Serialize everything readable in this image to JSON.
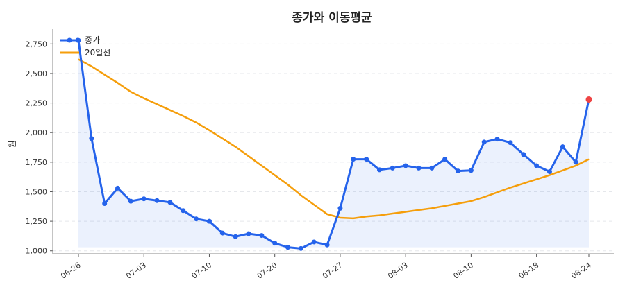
{
  "chart_data": {
    "type": "line",
    "title": "종가와 이동평균",
    "xlabel": "",
    "ylabel": "원",
    "ylim": [
      975,
      2875
    ],
    "y_ticks": [
      1000,
      1250,
      1500,
      1750,
      2000,
      2250,
      2500,
      2750
    ],
    "y_tick_labels": [
      "1,000",
      "1,250",
      "1,500",
      "1,750",
      "2,000",
      "2,250",
      "2,500",
      "2,750"
    ],
    "x_tick_labels": [
      "06-26",
      "07-03",
      "07-10",
      "07-20",
      "07-27",
      "08-03",
      "08-10",
      "08-18",
      "08-24"
    ],
    "x_tick_index": [
      0,
      5,
      10,
      15,
      20,
      25,
      30,
      35,
      39
    ],
    "grid": true,
    "legend_position": "top-left",
    "series": [
      {
        "name": "종가",
        "color": "#2563eb",
        "values": [
          2780,
          1950,
          1400,
          1530,
          1420,
          1440,
          1425,
          1410,
          1340,
          1270,
          1250,
          1150,
          1120,
          1145,
          1130,
          1065,
          1030,
          1020,
          1075,
          1050,
          1360,
          1775,
          1775,
          1685,
          1700,
          1720,
          1700,
          1700,
          1775,
          1675,
          1680,
          1920,
          1945,
          1915,
          1815,
          1720,
          1670,
          1880,
          1750,
          2280
        ]
      },
      {
        "name": "20일선",
        "color": "#f59e0b",
        "values": [
          2620,
          2560,
          2490,
          2420,
          2345,
          2290,
          2240,
          2190,
          2140,
          2085,
          2020,
          1950,
          1880,
          1800,
          1720,
          1640,
          1560,
          1470,
          1390,
          1310,
          1280,
          1275,
          1290,
          1300,
          1315,
          1330,
          1345,
          1360,
          1380,
          1400,
          1420,
          1455,
          1495,
          1535,
          1570,
          1605,
          1640,
          1680,
          1720,
          1775
        ]
      }
    ],
    "last_point_color": "#ef4444"
  }
}
